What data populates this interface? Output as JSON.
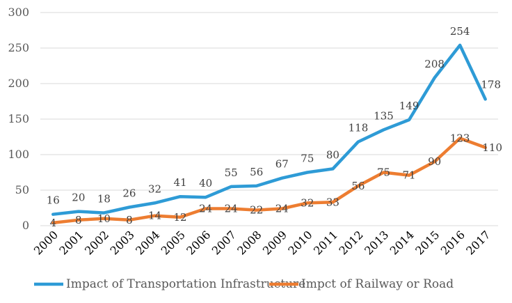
{
  "chart_data": {
    "type": "line",
    "title": "",
    "xlabel": "",
    "ylabel": "",
    "categories": [
      "2000",
      "2001",
      "2002",
      "2003",
      "2004",
      "2005",
      "2006",
      "2007",
      "2008",
      "2009",
      "2010",
      "2011",
      "2012",
      "2013",
      "2014",
      "2015",
      "2016",
      "2017"
    ],
    "ylim": [
      0,
      300
    ],
    "yticks": [
      0,
      50,
      100,
      150,
      200,
      250,
      300
    ],
    "grid": true,
    "legend_position": "bottom",
    "series": [
      {
        "name": "Impact of Transportation Infrastructure",
        "color": "#2e9bd6",
        "values": [
          16,
          20,
          18,
          26,
          32,
          41,
          40,
          55,
          56,
          67,
          75,
          80,
          118,
          135,
          149,
          208,
          254,
          178
        ]
      },
      {
        "name": "Impct of Railway or Road",
        "color": "#ed7d31",
        "values": [
          4,
          8,
          10,
          8,
          14,
          12,
          24,
          24,
          22,
          24,
          32,
          33,
          56,
          75,
          71,
          90,
          123,
          110
        ]
      }
    ]
  }
}
